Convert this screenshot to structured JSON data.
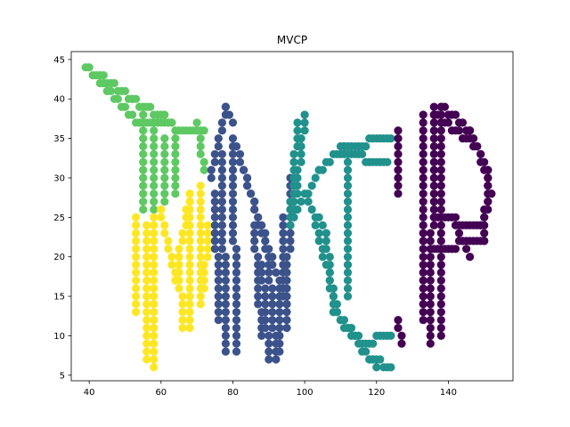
{
  "chart_data": {
    "type": "scatter",
    "title": "MVCP",
    "xlabel": "",
    "ylabel": "",
    "xlim": [
      35,
      158
    ],
    "ylim": [
      4.3,
      46
    ],
    "xticks": [
      40,
      60,
      80,
      100,
      120,
      140
    ],
    "yticks": [
      5,
      10,
      15,
      20,
      25,
      30,
      35,
      40,
      45
    ],
    "grid": false,
    "legend": "none",
    "series": [
      {
        "color": "#5ec962",
        "segments": [
          [
            [
              39,
              44
            ],
            [
              45,
              41
            ],
            [
              54,
              37
            ],
            [
              72,
              36
            ]
          ],
          [
            [
              43,
              43
            ],
            [
              52,
              40
            ],
            [
              63,
              37
            ]
          ],
          [
            [
              55,
              38
            ],
            [
              55,
              26
            ]
          ],
          [
            [
              58,
              36
            ],
            [
              58,
              26
            ]
          ],
          [
            [
              61,
              35
            ],
            [
              61,
              27
            ]
          ],
          [
            [
              64,
              35
            ],
            [
              64,
              28
            ]
          ],
          [
            [
              70,
              37
            ],
            [
              72,
              31
            ]
          ]
        ]
      },
      {
        "color": "#fde725",
        "segments": [
          [
            [
              53,
              25
            ],
            [
              53,
              13
            ]
          ],
          [
            [
              56,
              24
            ],
            [
              56,
              7
            ]
          ],
          [
            [
              58,
              25
            ],
            [
              58,
              6
            ]
          ],
          [
            [
              60,
              26
            ],
            [
              64,
              17
            ]
          ],
          [
            [
              64,
              17
            ],
            [
              68,
              28
            ]
          ],
          [
            [
              65,
              20
            ],
            [
              66,
              11
            ]
          ],
          [
            [
              68,
              28
            ],
            [
              68,
              11
            ]
          ],
          [
            [
              71,
              29
            ],
            [
              71,
              14
            ]
          ],
          [
            [
              73,
              24
            ],
            [
              72,
              16
            ]
          ]
        ]
      },
      {
        "color": "#3b528b",
        "segments": [
          [
            [
              74,
              30
            ],
            [
              78,
              39
            ]
          ],
          [
            [
              78,
              39
            ],
            [
              80,
              37
            ]
          ],
          [
            [
              75,
              28
            ],
            [
              76,
              12
            ]
          ],
          [
            [
              77,
              33
            ],
            [
              78,
              8
            ]
          ],
          [
            [
              80,
              35
            ],
            [
              81,
              8
            ]
          ],
          [
            [
              81,
              34
            ],
            [
              90,
              20
            ]
          ],
          [
            [
              83,
              31
            ],
            [
              92,
              18
            ]
          ],
          [
            [
              86,
              24
            ],
            [
              88,
              10
            ]
          ],
          [
            [
              88,
              19
            ],
            [
              90,
              7
            ]
          ],
          [
            [
              90,
              20
            ],
            [
              92,
              7
            ]
          ],
          [
            [
              92,
              18
            ],
            [
              95,
              14
            ]
          ],
          [
            [
              94,
              25
            ],
            [
              93,
              8
            ]
          ],
          [
            [
              96,
              30
            ],
            [
              95,
              11
            ]
          ]
        ]
      },
      {
        "color": "#21918c",
        "segments": [
          [
            [
              98,
              37
            ],
            [
              96,
              24
            ]
          ],
          [
            [
              100,
              38
            ],
            [
              97,
              25
            ]
          ],
          [
            [
              97,
              25
            ],
            [
              104,
              31
            ]
          ],
          [
            [
              104,
              31
            ],
            [
              111,
              34
            ]
          ],
          [
            [
              111,
              34
            ],
            [
              124,
              35
            ]
          ],
          [
            [
              110,
              33
            ],
            [
              123,
              32
            ]
          ],
          [
            [
              101,
              27
            ],
            [
              106,
              23
            ]
          ],
          [
            [
              106,
              23
            ],
            [
              108,
              13
            ]
          ],
          [
            [
              108,
              13
            ],
            [
              116,
              9
            ]
          ],
          [
            [
              103,
              24
            ],
            [
              110,
              12
            ]
          ],
          [
            [
              110,
              12
            ],
            [
              120,
              6
            ]
          ],
          [
            [
              116,
              9
            ],
            [
              124,
              10
            ]
          ],
          [
            [
              118,
              7
            ],
            [
              124,
              6
            ]
          ],
          [
            [
              112,
              33
            ],
            [
              112,
              15
            ]
          ]
        ]
      },
      {
        "color": "#440154",
        "segments": [
          [
            [
              126,
              36
            ],
            [
              126,
              28
            ]
          ],
          [
            [
              126,
              12
            ],
            [
              127,
              9
            ]
          ],
          [
            [
              133,
              38
            ],
            [
              133,
              12
            ]
          ],
          [
            [
              136,
              39
            ],
            [
              135,
              9
            ]
          ],
          [
            [
              138,
              39
            ],
            [
              138,
              10
            ]
          ],
          [
            [
              138,
              39
            ],
            [
              146,
              36
            ]
          ],
          [
            [
              136,
              38
            ],
            [
              148,
              34
            ]
          ],
          [
            [
              146,
              36
            ],
            [
              151,
              31
            ]
          ],
          [
            [
              148,
              34
            ],
            [
              152,
              28
            ]
          ],
          [
            [
              151,
              31
            ],
            [
              150,
              22
            ]
          ],
          [
            [
              152,
              28
            ],
            [
              149,
              24
            ]
          ],
          [
            [
              150,
              22
            ],
            [
              136,
              21
            ]
          ],
          [
            [
              149,
              24
            ],
            [
              136,
              25
            ]
          ],
          [
            [
              142,
              24
            ],
            [
              146,
              20
            ]
          ]
        ]
      }
    ]
  }
}
